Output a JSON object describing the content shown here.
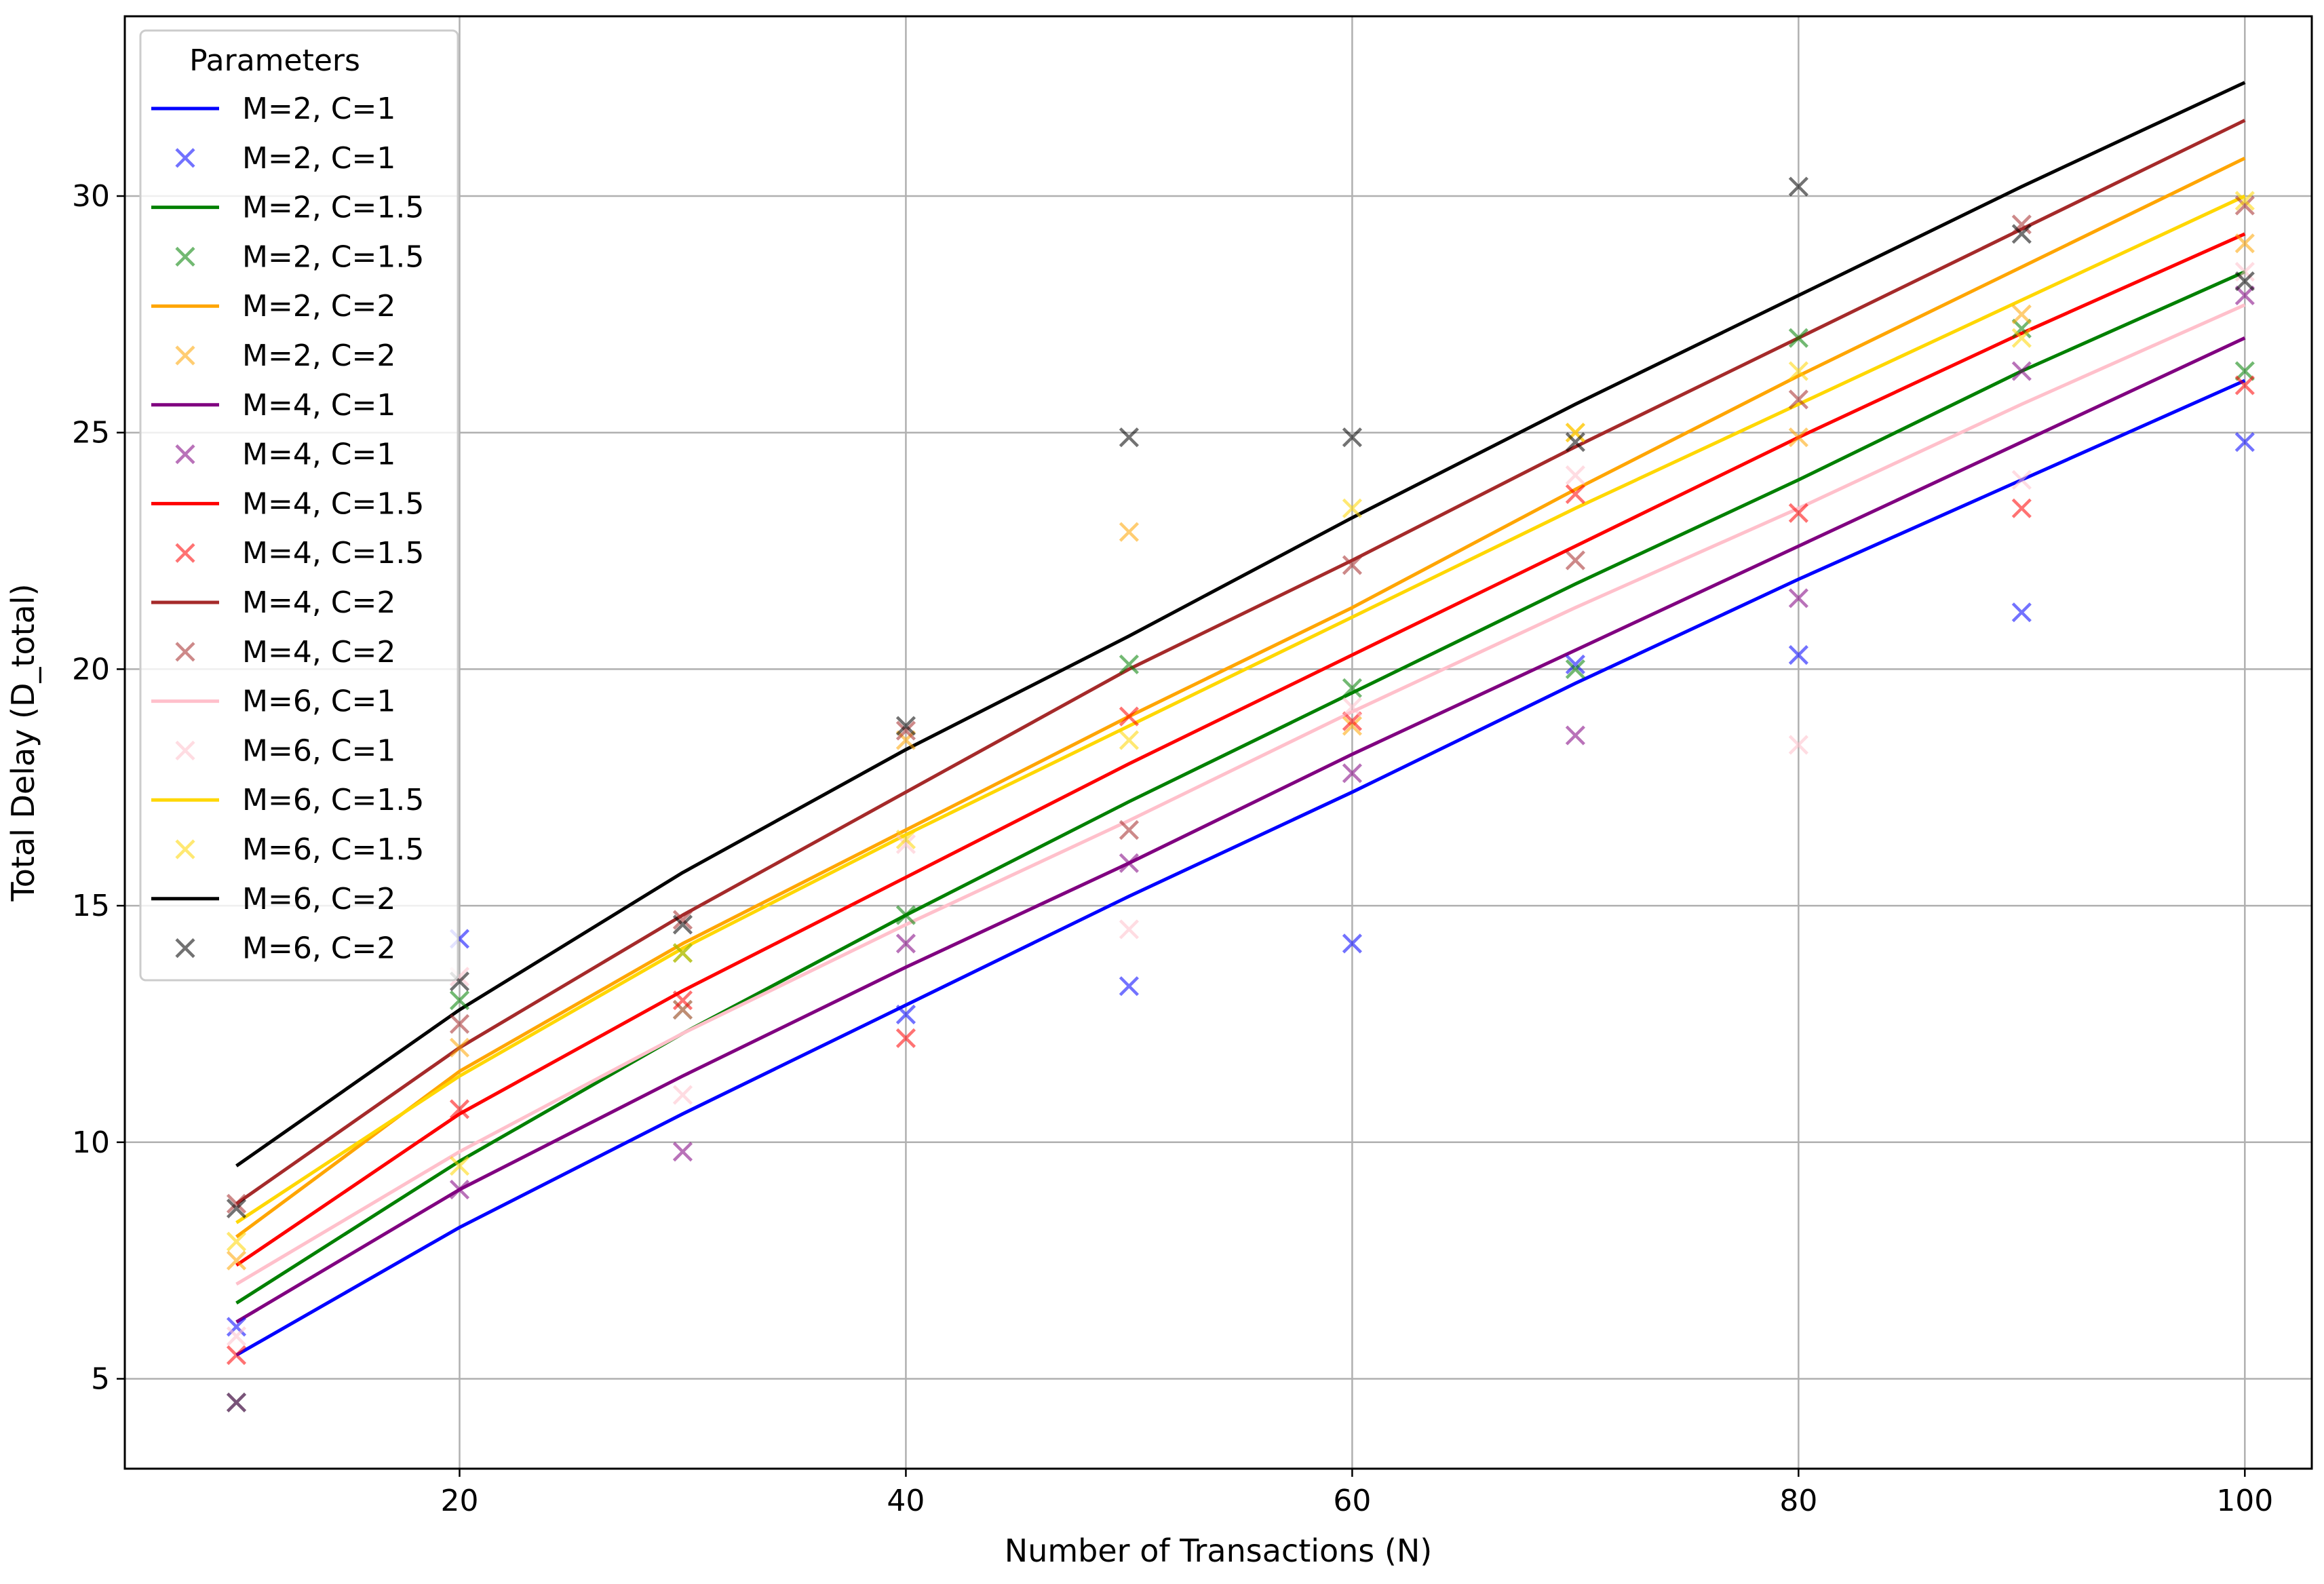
{
  "chart_data": {
    "type": "line",
    "xlabel": "Number of Transactions (N)",
    "ylabel": "Total Delay (D_total)",
    "xlim": [
      5,
      103
    ],
    "ylim": [
      3.1,
      33.8
    ],
    "xticks": [
      20,
      40,
      60,
      80,
      100
    ],
    "yticks": [
      5,
      10,
      15,
      20,
      25,
      30
    ],
    "grid": true,
    "legend": {
      "title": "Parameters",
      "placement": "top-left"
    },
    "x": [
      10,
      20,
      30,
      40,
      50,
      60,
      70,
      80,
      90,
      100
    ],
    "series": [
      {
        "name": "M=2, C=1",
        "color": "#0000ff",
        "line": [
          5.5,
          8.2,
          10.6,
          12.9,
          15.2,
          17.4,
          19.7,
          21.9,
          24.0,
          26.1
        ],
        "observed": [
          6.1,
          14.3,
          12.8,
          12.7,
          13.3,
          14.2,
          20.1,
          20.3,
          21.2,
          24.8
        ]
      },
      {
        "name": "M=2, C=1.5",
        "color": "#008000",
        "line": [
          6.6,
          9.6,
          12.3,
          14.8,
          17.2,
          19.5,
          21.8,
          24.0,
          26.3,
          28.4
        ],
        "observed": [
          4.5,
          13.0,
          14.0,
          14.8,
          20.1,
          19.6,
          20.0,
          27.0,
          27.2,
          26.3
        ]
      },
      {
        "name": "M=2, C=2",
        "color": "#ffa500",
        "line": [
          8.0,
          11.5,
          14.2,
          16.6,
          19.0,
          21.3,
          23.8,
          26.2,
          28.5,
          30.8
        ],
        "observed": [
          7.5,
          12.0,
          12.8,
          18.5,
          22.9,
          18.8,
          25.0,
          24.9,
          27.5,
          29.0
        ]
      },
      {
        "name": "M=4, C=1",
        "color": "#800080",
        "line": [
          6.2,
          9.0,
          11.4,
          13.7,
          15.9,
          18.2,
          20.4,
          22.6,
          24.8,
          27.0
        ],
        "observed": [
          4.5,
          9.0,
          9.8,
          14.2,
          15.9,
          17.8,
          18.6,
          21.5,
          26.3,
          27.9
        ]
      },
      {
        "name": "M=4, C=1.5",
        "color": "#ff0000",
        "line": [
          7.4,
          10.6,
          13.2,
          15.6,
          18.0,
          20.3,
          22.6,
          24.9,
          27.1,
          29.2
        ],
        "observed": [
          5.5,
          10.7,
          13.0,
          12.2,
          19.0,
          18.9,
          23.7,
          23.3,
          23.4,
          26.0
        ]
      },
      {
        "name": "M=4, C=2",
        "color": "#a52a2a",
        "line": [
          8.7,
          12.0,
          14.8,
          17.4,
          20.0,
          22.3,
          24.7,
          27.0,
          29.3,
          31.6
        ],
        "observed": [
          8.7,
          12.5,
          14.7,
          18.7,
          16.6,
          22.2,
          22.3,
          25.7,
          29.4,
          29.8
        ]
      },
      {
        "name": "M=6, C=1",
        "color": "#ffc0cb",
        "line": [
          7.0,
          9.8,
          12.3,
          14.6,
          16.8,
          19.1,
          21.3,
          23.4,
          25.6,
          27.7
        ],
        "observed": [
          5.9,
          13.5,
          11.0,
          16.3,
          14.5,
          19.2,
          24.1,
          18.4,
          24.0,
          28.4
        ]
      },
      {
        "name": "M=6, C=1.5",
        "color": "#ffd700",
        "line": [
          8.3,
          11.4,
          14.1,
          16.5,
          18.8,
          21.1,
          23.4,
          25.6,
          27.8,
          30.0
        ],
        "observed": [
          7.9,
          9.5,
          14.0,
          16.4,
          18.5,
          23.4,
          25.0,
          26.3,
          27.0,
          29.9
        ]
      },
      {
        "name": "M=6, C=2",
        "color": "#000000",
        "line": [
          9.5,
          12.8,
          15.7,
          18.3,
          20.7,
          23.2,
          25.6,
          27.9,
          30.2,
          32.4
        ],
        "observed": [
          8.6,
          13.4,
          14.6,
          18.8,
          24.9,
          24.9,
          24.8,
          30.2,
          29.2,
          28.2
        ]
      }
    ]
  }
}
